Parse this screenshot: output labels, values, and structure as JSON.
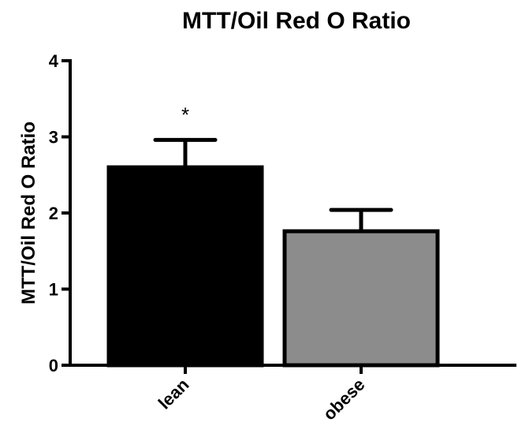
{
  "chart_data": {
    "type": "bar",
    "title": "MTT/Oil Red O Ratio",
    "ylabel": "MTT/Oil Red O Ratio",
    "xlabel": "",
    "categories": [
      "lean",
      "obese"
    ],
    "values": [
      2.6,
      1.76
    ],
    "error_upper": [
      0.36,
      0.28
    ],
    "colors": [
      "#000000",
      "#8c8c8c"
    ],
    "ylim": [
      0,
      4
    ],
    "yticks": [
      "0",
      "1",
      "2",
      "3",
      "4"
    ],
    "annotations": [
      {
        "category": "lean",
        "text": "*"
      }
    ],
    "grid": false,
    "legend": "none"
  }
}
